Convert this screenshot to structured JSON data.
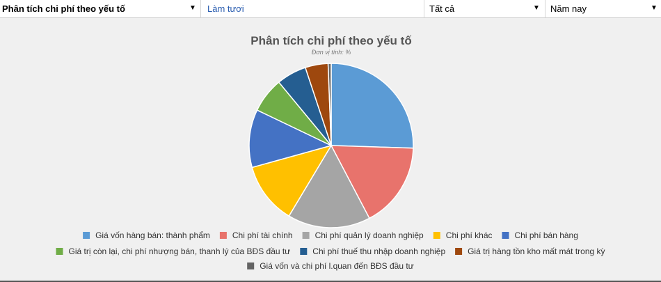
{
  "toolbar": {
    "report_select": "Phân tích chi phí theo yếu tố",
    "refresh_label": "Làm tươi",
    "scope_select": "Tất cả",
    "period_select": "Năm nay",
    "dropdown_arrow": "▼"
  },
  "chart_data": {
    "type": "pie",
    "title": "Phân tích chi phí theo yếu tố",
    "subtitle": "Đơn vị tính: %",
    "legend_position": "bottom",
    "slices": [
      {
        "label": "Giá vốn hàng bán: thành phẩm",
        "value": 25.5,
        "color": "#5b9bd5"
      },
      {
        "label": "Chi phí tài chính",
        "value": 16.8,
        "color": "#e8736c"
      },
      {
        "label": "Chi phí quản lý doanh nghiệp",
        "value": 16.3,
        "color": "#a5a5a5"
      },
      {
        "label": "Chi phí khác",
        "value": 12.1,
        "color": "#ffc000"
      },
      {
        "label": "Chi phí bán hàng",
        "value": 11.4,
        "color": "#4472c4"
      },
      {
        "label": "Giá trị còn lại, chi phí nhượng bán, thanh lý của BĐS đầu tư",
        "value": 6.9,
        "color": "#70ad47"
      },
      {
        "label": "Chi phí thuế thu nhập doanh nghiệp",
        "value": 5.9,
        "color": "#255e91"
      },
      {
        "label": "Giá trị hàng tồn kho mất mát trong kỳ",
        "value": 4.5,
        "color": "#9e480e"
      },
      {
        "label": "Giá vốn và chi phí l.quan đến BĐS đầu tư",
        "value": 0.6,
        "color": "#636363"
      }
    ]
  }
}
